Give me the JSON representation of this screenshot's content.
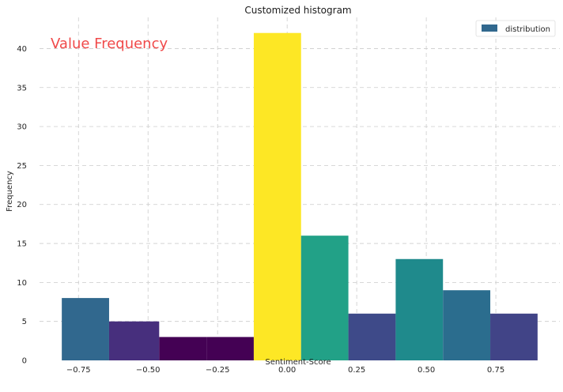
{
  "chart_data": {
    "type": "bar",
    "title": "Customized histogram",
    "xlabel": "Sentiment-Score",
    "ylabel": "Frequency",
    "annotation": {
      "text": "Value Frequency",
      "color": "#f04a4a"
    },
    "legend": {
      "label": "distribution",
      "color": "#31688e",
      "placement": "top-right"
    },
    "xlim": [
      -0.89,
      0.98
    ],
    "ylim": [
      0,
      44
    ],
    "x_ticks": [
      -0.75,
      -0.5,
      -0.25,
      0.0,
      0.25,
      0.5,
      0.75
    ],
    "x_tick_labels": [
      "−0.75",
      "−0.50",
      "−0.25",
      "0.00",
      "0.25",
      "0.50",
      "0.75"
    ],
    "y_ticks": [
      0,
      5,
      10,
      15,
      20,
      25,
      30,
      35,
      40
    ],
    "y_tick_labels": [
      "0",
      "5",
      "10",
      "15",
      "20",
      "25",
      "30",
      "35",
      "40"
    ],
    "grid": true,
    "bins": [
      {
        "start": -0.81,
        "end": -0.64,
        "value": 8,
        "color": "#31688e"
      },
      {
        "start": -0.64,
        "end": -0.46,
        "value": 5,
        "color": "#472f7d"
      },
      {
        "start": -0.46,
        "end": -0.29,
        "value": 3,
        "color": "#440154"
      },
      {
        "start": -0.29,
        "end": -0.12,
        "value": 3,
        "color": "#440154"
      },
      {
        "start": -0.12,
        "end": 0.05,
        "value": 42,
        "color": "#fde725"
      },
      {
        "start": 0.05,
        "end": 0.22,
        "value": 16,
        "color": "#22a187"
      },
      {
        "start": 0.22,
        "end": 0.39,
        "value": 6,
        "color": "#3e4a89"
      },
      {
        "start": 0.39,
        "end": 0.56,
        "value": 13,
        "color": "#1f8a8c"
      },
      {
        "start": 0.56,
        "end": 0.73,
        "value": 9,
        "color": "#2b6d8e"
      },
      {
        "start": 0.73,
        "end": 0.9,
        "value": 6,
        "color": "#414487"
      }
    ]
  }
}
